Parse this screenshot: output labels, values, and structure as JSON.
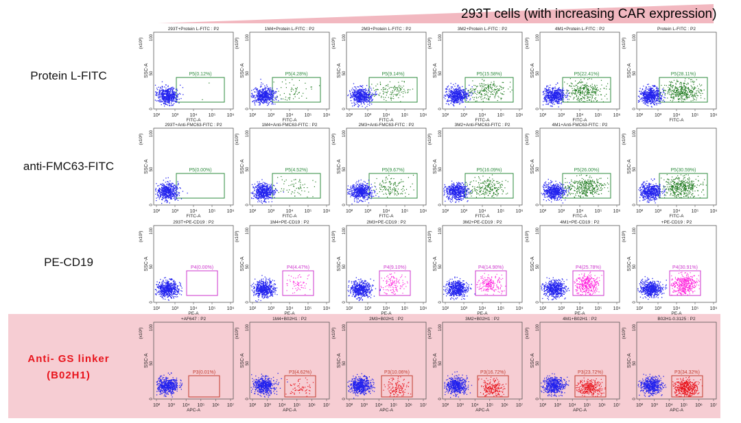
{
  "banner": {
    "text": "293T cells (with increasing CAR expression)"
  },
  "colors": {
    "highlight": "#f6cdd3",
    "wedge": "#f2b8c0",
    "red_label": "#e8141c"
  },
  "rows": [
    {
      "label": "Protein L-FITC",
      "label_line2": "",
      "xlabel": "FITC-A",
      "gate_name": "P5",
      "gate_color": "#2e8b3e",
      "dot_color": "#1f7a1f",
      "x_max_exp": 6,
      "style": "normal"
    },
    {
      "label": "anti-FMC63-FITC",
      "label_line2": "",
      "xlabel": "FITC-A",
      "gate_name": "P5",
      "gate_color": "#2e8b3e",
      "dot_color": "#1f7a1f",
      "x_max_exp": 6,
      "style": "normal"
    },
    {
      "label": "PE-CD19",
      "label_line2": "",
      "xlabel": "PE-A",
      "gate_name": "P4",
      "gate_color": "#cc33cc",
      "dot_color": "#ff22dd",
      "x_max_exp": 6,
      "style": "normal"
    },
    {
      "label": "Anti- GS  linker",
      "label_line2": "(B02H1)",
      "xlabel": "APC-A",
      "gate_name": "P3",
      "gate_color": "#c0392b",
      "dot_color": "#e8141c",
      "x_max_exp": 7,
      "style": "highlight"
    }
  ],
  "chart_data": {
    "type": "scatter",
    "description_axes": {
      "y_label": "SSC-A",
      "y_unit": "(x10³)",
      "y_ticks": [
        "0",
        "50",
        "100"
      ],
      "x_tick_base": "10",
      "x_tick_min_exp": 2
    },
    "panels": [
      [
        {
          "title": "293T+Protein L-FITC : P2",
          "gate_label": "P5(0.12%)",
          "percent": 0.12
        },
        {
          "title": "1M4+Protein L-FITC : P2",
          "gate_label": "P5(4.28%)",
          "percent": 4.28
        },
        {
          "title": "2M3+Protein L-FITC : P2",
          "gate_label": "P5(9.14%)",
          "percent": 9.14
        },
        {
          "title": "3M2+Protein L-FITC : P2",
          "gate_label": "P5(15.58%)",
          "percent": 15.58
        },
        {
          "title": "4M1+Protein L-FITC : P2",
          "gate_label": "P5(22.41%)",
          "percent": 22.41
        },
        {
          "title": "Protein L-FITC : P2",
          "gate_label": "P5(28.11%)",
          "percent": 28.11
        }
      ],
      [
        {
          "title": "293T+Anti-FMC63-FITC : P2",
          "gate_label": "P5(0.00%)",
          "percent": 0.0
        },
        {
          "title": "1M4+Anti-FMC63-FITC : P2",
          "gate_label": "P5(4.52%)",
          "percent": 4.52
        },
        {
          "title": "2M3+Anti-FMC63-FITC : P2",
          "gate_label": "P5(9.67%)",
          "percent": 9.67
        },
        {
          "title": "3M2+Anti-FMC63-FITC : P2",
          "gate_label": "P5(16.09%)",
          "percent": 16.09
        },
        {
          "title": "4M1+Anti-FMC63-FITC : P2",
          "gate_label": "P5(26.00%)",
          "percent": 26.0
        },
        {
          "title": "",
          "gate_label": "P5(30.59%)",
          "percent": 30.59
        }
      ],
      [
        {
          "title": "293T+PE-CD19 : P2",
          "gate_label": "P4(0.00%)",
          "percent": 0.0
        },
        {
          "title": "1M4+PE-CD19 : P2",
          "gate_label": "P4(4.47%)",
          "percent": 4.47
        },
        {
          "title": "2M3+PE-CD19 : P2",
          "gate_label": "P4(9.10%)",
          "percent": 9.1
        },
        {
          "title": "3M2+PE-CD19 : P2",
          "gate_label": "P4(14.90%)",
          "percent": 14.9
        },
        {
          "title": "4M1+PE-CD19 : P2",
          "gate_label": "P4(25.78%)",
          "percent": 25.78
        },
        {
          "title": "+PE-CD19 : P2",
          "gate_label": "P4(30.91%)",
          "percent": 30.91
        }
      ],
      [
        {
          "title": "+AF647 : P2",
          "gate_label": "P3(0.01%)",
          "percent": 0.01
        },
        {
          "title": "1M4+B02H1 : P2",
          "gate_label": "P3(4.62%)",
          "percent": 4.62
        },
        {
          "title": "2M3+B02H1 : P2",
          "gate_label": "P3(10.06%)",
          "percent": 10.06
        },
        {
          "title": "3M2+B02H1 : P2",
          "gate_label": "P3(16.72%)",
          "percent": 16.72
        },
        {
          "title": "4M1+B02H1 : P2",
          "gate_label": "P3(23.72%)",
          "percent": 23.72
        },
        {
          "title": "B02H1-0.3125 : P2",
          "gate_label": "P3(34.32%)",
          "percent": 34.32
        }
      ]
    ]
  }
}
